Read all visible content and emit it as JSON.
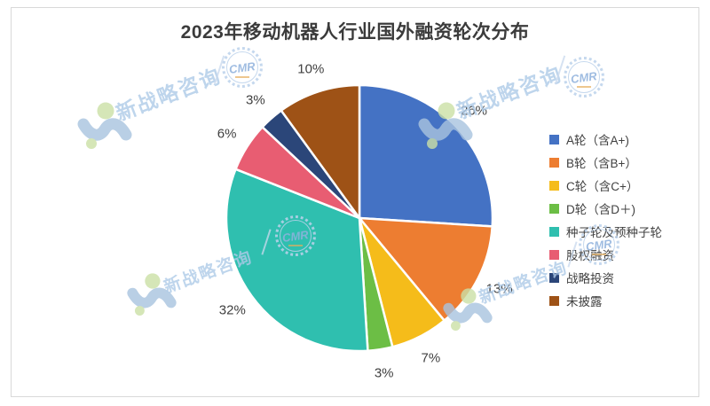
{
  "chart_data": {
    "type": "pie",
    "title": "2023年移动机器人行业国外融资轮次分布",
    "labels": [
      "A轮（含A+)",
      "B轮（含B+）",
      "C轮（含C+）",
      "D轮（含D＋)",
      "种子轮及预种子轮",
      "股权融资",
      "战略投资",
      "未披露"
    ],
    "values": [
      26,
      13,
      7,
      3,
      32,
      6,
      3,
      10
    ],
    "colors": [
      "#4472C4",
      "#ED7D31",
      "#F5BC1A",
      "#6CBE45",
      "#2FBFAF",
      "#E85D72",
      "#2B4679",
      "#9E5216"
    ],
    "value_suffix": "%",
    "data_label_format": "percent-outside",
    "start_angle": "top-clockwise",
    "legend_position": "right",
    "grid": false
  },
  "watermark": {
    "text": "新战略咨询",
    "stamp_text": "CMR"
  }
}
